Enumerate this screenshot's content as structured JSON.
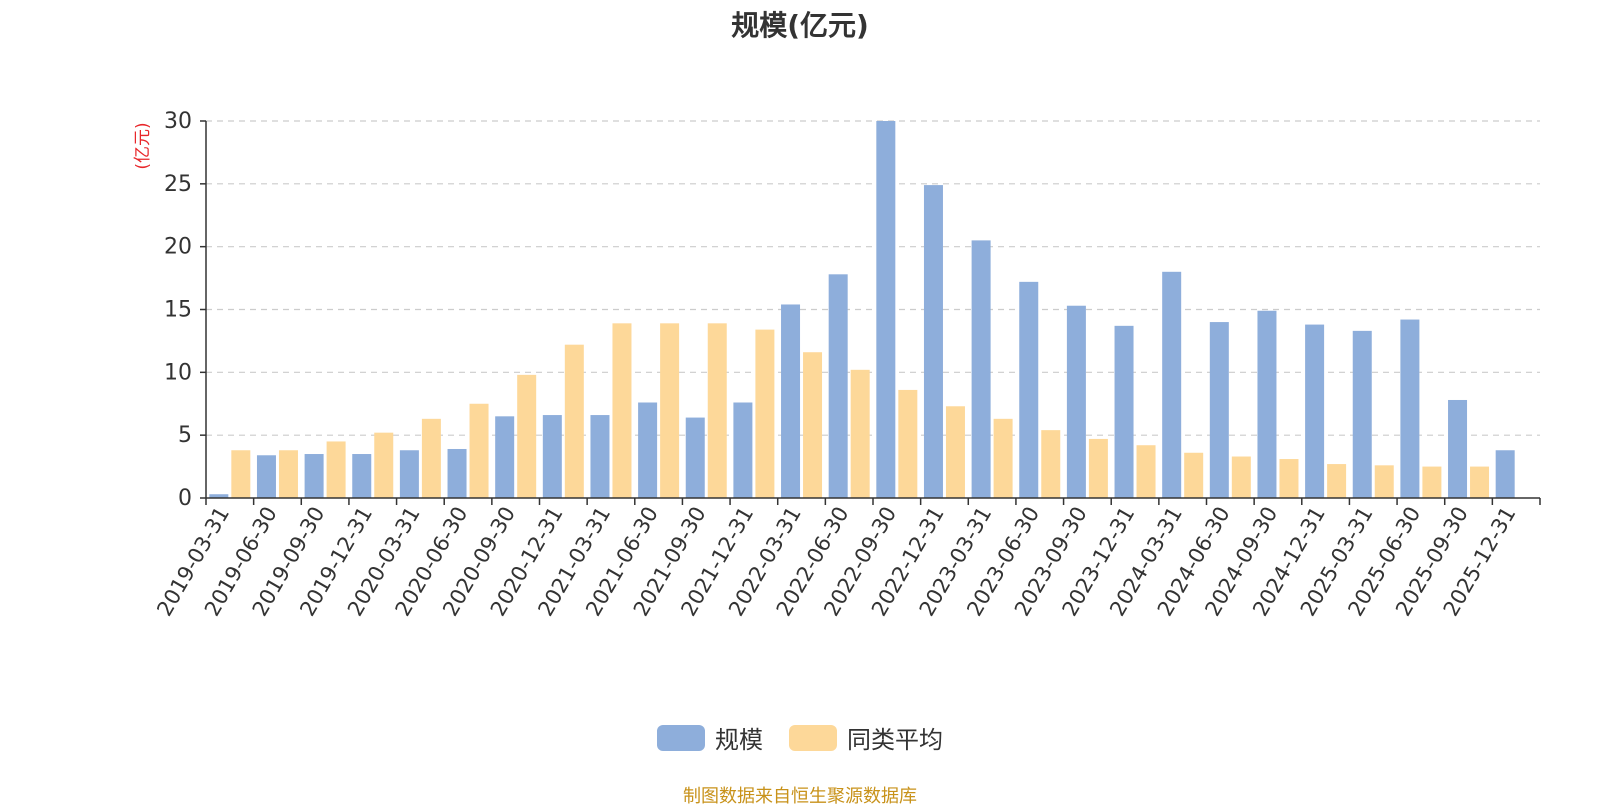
{
  "title": "规模(亿元)",
  "source_note": "制图数据来自恒生聚源数据库",
  "colors": {
    "scale": "#8eaedb",
    "peer_avg": "#fdd899",
    "unit_label": "#e8262a",
    "axis": "#333333",
    "grid": "#cccccc"
  },
  "chart_data": {
    "type": "bar",
    "ylabel": "(亿元)",
    "ylim": [
      0,
      30
    ],
    "yticks": [
      0,
      5,
      10,
      15,
      20,
      25,
      30
    ],
    "grid": true,
    "legend_position": "bottom",
    "categories": [
      "2019-03-31",
      "2019-06-30",
      "2019-09-30",
      "2019-12-31",
      "2020-03-31",
      "2020-06-30",
      "2020-09-30",
      "2020-12-31",
      "2021-03-31",
      "2021-06-30",
      "2021-09-30",
      "2021-12-31",
      "2022-03-31",
      "2022-06-30",
      "2022-09-30",
      "2022-12-31",
      "2023-03-31",
      "2023-06-30",
      "2023-09-30",
      "2023-12-31",
      "2024-03-31",
      "2024-06-30",
      "2024-09-30",
      "2024-12-31",
      "2025-03-31",
      "2025-06-30",
      "2025-09-30",
      "2025-12-31"
    ],
    "series": [
      {
        "name": "规模",
        "color": "#8eaedb",
        "values": [
          0.3,
          3.4,
          3.5,
          3.5,
          3.8,
          3.9,
          6.5,
          6.6,
          6.6,
          7.6,
          6.4,
          7.6,
          15.4,
          17.8,
          30.0,
          24.9,
          20.5,
          17.2,
          15.3,
          13.7,
          18.0,
          14.0,
          14.9,
          13.8,
          13.3,
          14.2,
          7.8,
          3.8
        ]
      },
      {
        "name": "同类平均",
        "color": "#fdd899",
        "values": [
          3.8,
          3.8,
          4.5,
          5.2,
          6.3,
          7.5,
          9.8,
          12.2,
          13.9,
          13.9,
          13.9,
          13.4,
          11.6,
          10.2,
          8.6,
          7.3,
          6.3,
          5.4,
          4.7,
          4.2,
          3.6,
          3.3,
          3.1,
          2.7,
          2.6,
          2.5,
          2.5,
          null
        ]
      }
    ]
  }
}
